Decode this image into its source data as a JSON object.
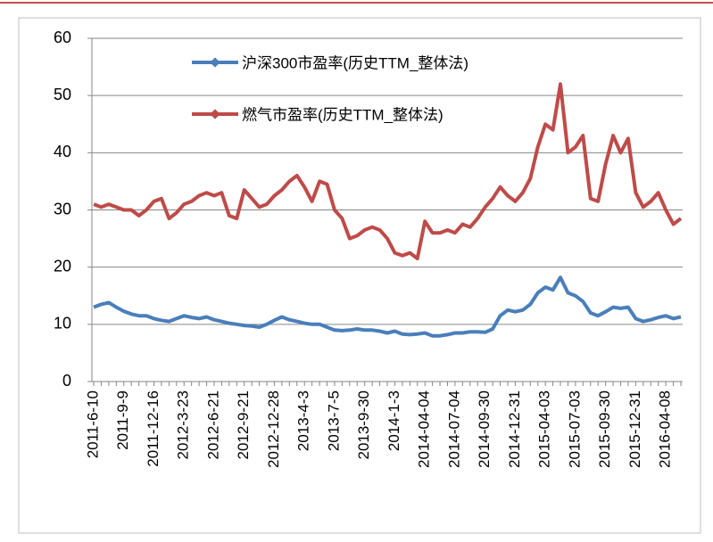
{
  "chart_data": {
    "type": "line",
    "categories": [
      "2011-6-10",
      null,
      null,
      null,
      "2011-9-9",
      null,
      null,
      null,
      "2011-12-16",
      null,
      null,
      null,
      "2012-3-23",
      null,
      null,
      null,
      "2012-6-21",
      null,
      null,
      null,
      "2012-9-21",
      null,
      null,
      null,
      "2012-12-28",
      null,
      null,
      null,
      "2013-4-3",
      null,
      null,
      null,
      "2013-7-5",
      null,
      null,
      null,
      "2013-9-30",
      null,
      null,
      null,
      "2014-1-3",
      null,
      null,
      null,
      "2014-04-04",
      null,
      null,
      null,
      "2014-07-04",
      null,
      null,
      null,
      "2014-09-30",
      null,
      null,
      null,
      "2014-12-31",
      null,
      null,
      null,
      "2015-04-03",
      null,
      null,
      null,
      "2015-07-03",
      null,
      null,
      null,
      "2015-09-30",
      null,
      null,
      null,
      "2015-12-31",
      null,
      null,
      null,
      "2016-04-08",
      null,
      null
    ],
    "series": [
      {
        "name": "沪深300市盈率(历史TTM_整体法)",
        "color": "#4a7ebb",
        "values": [
          13,
          13.5,
          13.8,
          13,
          12.3,
          11.8,
          11.5,
          11.5,
          11,
          10.7,
          10.5,
          11,
          11.5,
          11.2,
          11,
          11.3,
          10.8,
          10.5,
          10.2,
          10,
          9.8,
          9.7,
          9.5,
          10,
          10.7,
          11.3,
          10.8,
          10.5,
          10.2,
          10,
          10,
          9.5,
          9,
          8.9,
          9,
          9.2,
          9,
          9,
          8.8,
          8.5,
          8.8,
          8.3,
          8.2,
          8.3,
          8.5,
          8,
          8,
          8.2,
          8.5,
          8.5,
          8.7,
          8.7,
          8.6,
          9.2,
          11.5,
          12.5,
          12.2,
          12.5,
          13.5,
          15.5,
          16.5,
          16,
          18.2,
          15.5,
          15,
          14,
          12,
          11.5,
          12.2,
          13,
          12.8,
          13,
          11,
          10.5,
          10.8,
          11.2,
          11.5,
          11,
          11.3
        ]
      },
      {
        "name": "燃气市盈率(历史TTM_整体法)",
        "color": "#be4b48",
        "values": [
          31,
          30.5,
          31,
          30.5,
          30,
          30,
          29,
          30,
          31.5,
          32,
          28.5,
          29.5,
          31,
          31.5,
          32.5,
          33,
          32.5,
          33,
          29,
          28.5,
          33.5,
          32,
          30.5,
          31,
          32.5,
          33.5,
          35,
          36,
          34,
          31.5,
          35,
          34.5,
          30,
          28.5,
          25,
          25.5,
          26.5,
          27,
          26.5,
          25,
          22.5,
          22,
          22.5,
          21.5,
          28,
          26,
          26,
          26.5,
          26,
          27.5,
          27,
          28.5,
          30.5,
          32,
          34,
          32.5,
          31.5,
          33,
          35.5,
          41,
          45,
          44,
          52,
          40,
          41,
          43,
          32,
          31.5,
          38,
          43,
          40,
          42.5,
          33,
          30.5,
          31.5,
          33,
          30,
          27.5,
          28.5
        ]
      }
    ],
    "ylim": [
      0,
      60
    ],
    "yticks": [
      0,
      10,
      20,
      30,
      40,
      50,
      60
    ],
    "grid": true,
    "legend": "top"
  }
}
